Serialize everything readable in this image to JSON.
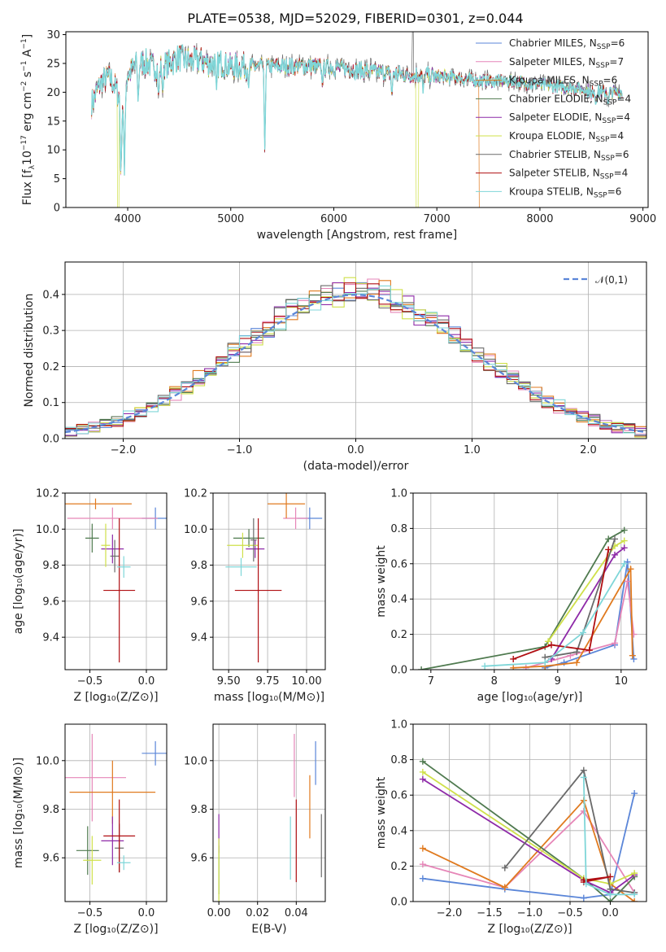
{
  "figure_title": "PLATE=0538, MJD=52029, FIBERID=0301, z=0.044",
  "colors": {
    "Chabrier MILES": "#5b86d8",
    "Salpeter MILES": "#e686b8",
    "Kroupa MILES": "#e07a1f",
    "Chabrier ELODIE": "#4f7a4f",
    "Salpeter ELODIE": "#8e2aa8",
    "Kroupa ELODIE": "#cfe04a",
    "Chabrier STELIB": "#6a6a6a",
    "Salpeter STELIB": "#b00f12",
    "Kroupa STELIB": "#7fd6d8"
  },
  "chart_data": [
    {
      "type": "line",
      "title": "PLATE=0538, MJD=52029, FIBERID=0301, z=0.044",
      "xlabel": "wavelength [Angstrom, rest frame]",
      "ylabel": "Flux [f",
      "ylabel_sub": "λ",
      "ylabel_mid": "10",
      "ylabel_sup1": "−17",
      "ylabel_tail": " erg cm",
      "ylabel_sup2": "−2",
      "ylabel_s": " s",
      "ylabel_sup3": "−1",
      "ylabel_a": " A",
      "ylabel_sup4": "−1",
      "ylabel_end": "]",
      "xlim": [
        3400,
        9050
      ],
      "ylim": [
        0,
        30.5
      ],
      "xticks": [
        4000,
        5000,
        6000,
        7000,
        8000,
        9000
      ],
      "yticks": [
        0,
        5,
        10,
        15,
        20,
        25,
        30
      ],
      "legend_position": "top-right",
      "legend": [
        {
          "name": "Chabrier MILES",
          "nssp": "6"
        },
        {
          "name": "Salpeter MILES",
          "nssp": "7"
        },
        {
          "name": "Kroupa MILES",
          "nssp": "6"
        },
        {
          "name": "Chabrier ELODIE",
          "nssp": "4"
        },
        {
          "name": "Salpeter ELODIE",
          "nssp": "4"
        },
        {
          "name": "Kroupa ELODIE",
          "nssp": "4"
        },
        {
          "name": "Chabrier STELIB",
          "nssp": "6"
        },
        {
          "name": "Salpeter STELIB",
          "nssp": "4"
        },
        {
          "name": "Kroupa STELIB",
          "nssp": "6"
        }
      ],
      "legend_prefix": "N",
      "legend_sub": "SSP",
      "continuum": [
        [
          3650,
          18
        ],
        [
          3700,
          20
        ],
        [
          3750,
          22
        ],
        [
          3800,
          22.5
        ],
        [
          3850,
          22
        ],
        [
          3900,
          20
        ],
        [
          3950,
          18
        ],
        [
          4000,
          23
        ],
        [
          4100,
          25
        ],
        [
          4200,
          25
        ],
        [
          4300,
          24
        ],
        [
          4400,
          25
        ],
        [
          4500,
          26
        ],
        [
          4600,
          25.5
        ],
        [
          4700,
          25.5
        ],
        [
          4800,
          25
        ],
        [
          4900,
          25
        ],
        [
          5000,
          24.5
        ],
        [
          5200,
          24.5
        ],
        [
          5400,
          24.5
        ],
        [
          5600,
          24.5
        ],
        [
          5800,
          24.5
        ],
        [
          6000,
          24.3
        ],
        [
          6200,
          24
        ],
        [
          6400,
          23.5
        ],
        [
          6600,
          23.2
        ],
        [
          6800,
          23
        ],
        [
          7000,
          22.8
        ],
        [
          7200,
          22.5
        ],
        [
          7400,
          22
        ],
        [
          7600,
          22
        ],
        [
          7800,
          21.7
        ],
        [
          8000,
          21.3
        ],
        [
          8200,
          21
        ],
        [
          8400,
          20.5
        ],
        [
          8600,
          20
        ],
        [
          8800,
          20
        ]
      ],
      "lines": [
        [
          3934,
          4
        ],
        [
          3968,
          6
        ],
        [
          4102,
          18
        ],
        [
          4300,
          19
        ],
        [
          4340,
          20
        ],
        [
          4861,
          20
        ],
        [
          5175,
          21
        ],
        [
          5330,
          10
        ],
        [
          5890,
          21
        ],
        [
          6563,
          19
        ],
        [
          6867,
          20
        ],
        [
          8498,
          19
        ],
        [
          8542,
          18
        ],
        [
          8662,
          18
        ]
      ],
      "dropouts": [
        {
          "series": "Kroupa ELODIE",
          "from": 6800,
          "to": 6820
        },
        {
          "series": "Kroupa MILES",
          "from": 7410,
          "to": 7430
        },
        {
          "series": "Kroupa ELODIE",
          "from": 3900,
          "to": 3915
        }
      ]
    },
    {
      "type": "bar",
      "xlabel": "(data-model)/error",
      "ylabel": "Normed distribution",
      "xlim": [
        -2.5,
        2.5
      ],
      "ylim": [
        0,
        0.49
      ],
      "xticks": [
        -2,
        -1,
        0,
        1,
        2
      ],
      "yticks": [
        0.0,
        0.1,
        0.2,
        0.3,
        0.4
      ],
      "bin_width": 0.1,
      "legend_position": "top-right",
      "legend": [
        "𝒩(0,1)"
      ],
      "normal_curve": {
        "mean": 0,
        "sigma": 1
      }
    },
    {
      "type": "scatter",
      "xlabel": "Z [log₁₀(Z/Z⊙)]",
      "ylabel": "age  [log₁₀(age/yr)]",
      "xlim": [
        -0.72,
        0.18
      ],
      "ylim": [
        9.22,
        10.2
      ],
      "xticks": [
        -0.5,
        0.0
      ],
      "yticks": [
        9.4,
        9.6,
        9.8,
        10.0,
        10.2
      ],
      "points": [
        {
          "series": "Chabrier MILES",
          "x": 0.08,
          "xerr": 0.12,
          "y": 10.06,
          "yerr": 0.06
        },
        {
          "series": "Salpeter MILES",
          "x": -0.3,
          "xerr": 0.4,
          "y": 10.06,
          "yerr": 0.06
        },
        {
          "series": "Kroupa MILES",
          "x": -0.45,
          "xerr": 0.32,
          "y": 10.14,
          "yerr": 0.03
        },
        {
          "series": "Chabrier ELODIE",
          "x": -0.48,
          "xerr": 0.06,
          "y": 9.95,
          "yerr": 0.08
        },
        {
          "series": "Salpeter ELODIE",
          "x": -0.3,
          "xerr": 0.1,
          "y": 9.89,
          "yerr": 0.08
        },
        {
          "series": "Kroupa ELODIE",
          "x": -0.36,
          "xerr": 0.04,
          "y": 9.91,
          "yerr": 0.12
        },
        {
          "series": "Chabrier STELIB",
          "x": -0.28,
          "xerr": 0.04,
          "y": 9.85,
          "yerr": 0.09
        },
        {
          "series": "Salpeter STELIB",
          "x": -0.24,
          "xerr": 0.14,
          "y": 9.66,
          "yerr": 0.4
        },
        {
          "series": "Kroupa STELIB",
          "x": -0.2,
          "xerr": 0.06,
          "y": 9.79,
          "yerr": 0.06
        }
      ]
    },
    {
      "type": "scatter",
      "xlabel": "mass [log₁₀(M/M⊙)]",
      "ylabel": "",
      "xlim": [
        9.4,
        10.12
      ],
      "ylim": [
        9.22,
        10.2
      ],
      "xticks": [
        9.5,
        9.75,
        10.0
      ],
      "yticks": [
        9.4,
        9.6,
        9.8,
        10.0,
        10.2
      ],
      "points": [
        {
          "series": "Chabrier MILES",
          "x": 10.02,
          "xerr": 0.08,
          "y": 10.06,
          "yerr": 0.06
        },
        {
          "series": "Salpeter MILES",
          "x": 9.93,
          "xerr": 0.08,
          "y": 10.06,
          "yerr": 0.06
        },
        {
          "series": "Kroupa MILES",
          "x": 9.87,
          "xerr": 0.12,
          "y": 10.14,
          "yerr": 0.08
        },
        {
          "series": "Chabrier ELODIE",
          "x": 9.63,
          "xerr": 0.1,
          "y": 9.95,
          "yerr": 0.05
        },
        {
          "series": "Salpeter ELODIE",
          "x": 9.67,
          "xerr": 0.06,
          "y": 9.89,
          "yerr": 0.05
        },
        {
          "series": "Kroupa ELODIE",
          "x": 9.59,
          "xerr": 0.1,
          "y": 9.91,
          "yerr": 0.07
        },
        {
          "series": "Chabrier STELIB",
          "x": 9.66,
          "xerr": 0.02,
          "y": 9.94,
          "yerr": 0.12
        },
        {
          "series": "Salpeter STELIB",
          "x": 9.69,
          "xerr": 0.15,
          "y": 9.66,
          "yerr": 0.4
        },
        {
          "series": "Kroupa STELIB",
          "x": 9.58,
          "xerr": 0.1,
          "y": 9.79,
          "yerr": 0.05
        }
      ]
    },
    {
      "type": "line",
      "xlabel": "age  [log₁₀(age/yr)]",
      "ylabel": "mass weight",
      "xlim": [
        6.72,
        10.4
      ],
      "ylim": [
        0,
        1.0
      ],
      "xticks": [
        7,
        8,
        9,
        10
      ],
      "yticks": [
        0.0,
        0.2,
        0.4,
        0.6,
        0.8,
        1.0
      ],
      "series": [
        {
          "name": "Chabrier MILES",
          "x": [
            8.8,
            9.1,
            9.9,
            10.1,
            10.2
          ],
          "y": [
            0.01,
            0.04,
            0.14,
            0.61,
            0.06
          ]
        },
        {
          "name": "Salpeter MILES",
          "x": [
            8.5,
            9.2,
            9.9,
            10.1,
            10.2
          ],
          "y": [
            0.01,
            0.08,
            0.15,
            0.5,
            0.2
          ]
        },
        {
          "name": "Kroupa MILES",
          "x": [
            8.3,
            8.8,
            9.3,
            10.15,
            10.18
          ],
          "y": [
            0.01,
            0.02,
            0.04,
            0.57,
            0.08
          ]
        },
        {
          "name": "Chabrier ELODIE",
          "x": [
            6.85,
            8.8,
            9.8,
            10.05
          ],
          "y": [
            0.0,
            0.13,
            0.74,
            0.79
          ]
        },
        {
          "name": "Salpeter ELODIE",
          "x": [
            8.9,
            9.9,
            10.05
          ],
          "y": [
            0.06,
            0.65,
            0.69
          ]
        },
        {
          "name": "Kroupa ELODIE",
          "x": [
            8.85,
            9.9,
            10.05
          ],
          "y": [
            0.16,
            0.7,
            0.73
          ]
        },
        {
          "name": "Chabrier STELIB",
          "x": [
            8.8,
            9.3,
            9.9
          ],
          "y": [
            0.07,
            0.1,
            0.74
          ]
        },
        {
          "name": "Salpeter STELIB",
          "x": [
            8.3,
            8.9,
            9.5,
            9.8
          ],
          "y": [
            0.06,
            0.14,
            0.11,
            0.68
          ]
        },
        {
          "name": "Kroupa STELIB",
          "x": [
            7.85,
            8.8,
            9.4,
            10.05
          ],
          "y": [
            0.02,
            0.04,
            0.21,
            0.6
          ]
        }
      ]
    },
    {
      "type": "scatter",
      "xlabel": "Z [log₁₀(Z/Z⊙)]",
      "ylabel": "mass [log₁₀(M/M⊙)]",
      "xlim": [
        -0.72,
        0.18
      ],
      "ylim": [
        9.42,
        10.15
      ],
      "xticks": [
        -0.5,
        0.0
      ],
      "yticks": [
        9.6,
        9.8,
        10.0
      ],
      "points": [
        {
          "series": "Chabrier MILES",
          "x": 0.08,
          "xerr": 0.12,
          "y": 10.03,
          "yerr": 0.05
        },
        {
          "series": "Salpeter MILES",
          "x": -0.48,
          "xerr": 0.3,
          "y": 9.93,
          "yerr": 0.18
        },
        {
          "series": "Kroupa MILES",
          "x": -0.3,
          "xerr": 0.38,
          "y": 9.87,
          "yerr": 0.13
        },
        {
          "series": "Chabrier ELODIE",
          "x": -0.52,
          "xerr": 0.1,
          "y": 9.63,
          "yerr": 0.1
        },
        {
          "series": "Salpeter ELODIE",
          "x": -0.3,
          "xerr": 0.1,
          "y": 9.67,
          "yerr": 0.1
        },
        {
          "series": "Kroupa ELODIE",
          "x": -0.48,
          "xerr": 0.08,
          "y": 9.59,
          "yerr": 0.1
        },
        {
          "series": "Chabrier STELIB",
          "x": -0.24,
          "xerr": 0.04,
          "y": 9.64,
          "yerr": 0.1
        },
        {
          "series": "Salpeter STELIB",
          "x": -0.24,
          "xerr": 0.14,
          "y": 9.69,
          "yerr": 0.15
        },
        {
          "series": "Kroupa STELIB",
          "x": -0.2,
          "xerr": 0.06,
          "y": 9.58,
          "yerr": 0.03
        }
      ]
    },
    {
      "type": "scatter",
      "xlabel": "E(B-V)",
      "ylabel": "",
      "xlim": [
        -0.003,
        0.055
      ],
      "ylim": [
        9.42,
        10.15
      ],
      "xticks": [
        0.0,
        0.02,
        0.04
      ],
      "yticks": [
        9.6,
        9.8,
        10.0
      ],
      "points": [
        {
          "series": "Chabrier MILES",
          "x": 0.05,
          "y": 9.99,
          "yerr": 0.09
        },
        {
          "series": "Salpeter MILES",
          "x": 0.039,
          "y": 9.98,
          "yerr": 0.13
        },
        {
          "series": "Kroupa MILES",
          "x": 0.047,
          "y": 9.81,
          "yerr": 0.13
        },
        {
          "series": "Chabrier ELODIE",
          "x": 0.0,
          "y": 9.55,
          "yerr": 0.1
        },
        {
          "series": "Salpeter ELODIE",
          "x": 0.0,
          "y": 9.7,
          "yerr": 0.08
        },
        {
          "series": "Kroupa ELODIE",
          "x": 0.0,
          "y": 9.55,
          "yerr": 0.13
        },
        {
          "series": "Chabrier STELIB",
          "x": 0.053,
          "y": 9.65,
          "yerr": 0.13
        },
        {
          "series": "Salpeter STELIB",
          "x": 0.04,
          "y": 9.67,
          "yerr": 0.17
        },
        {
          "series": "Kroupa STELIB",
          "x": 0.037,
          "y": 9.64,
          "yerr": 0.13
        }
      ]
    },
    {
      "type": "line",
      "xlabel": "Z [log₁₀(Z/Z⊙)]",
      "ylabel": "mass weight",
      "xlim": [
        -2.45,
        0.45
      ],
      "ylim": [
        0,
        1.0
      ],
      "xticks": [
        -2.0,
        -1.5,
        -1.0,
        -0.5,
        0.0
      ],
      "yticks": [
        0.0,
        0.2,
        0.4,
        0.6,
        0.8,
        1.0
      ],
      "series": [
        {
          "name": "Chabrier MILES",
          "x": [
            -2.33,
            -1.31,
            -0.33,
            0.0,
            0.3
          ],
          "y": [
            0.13,
            0.07,
            0.02,
            0.04,
            0.61
          ]
        },
        {
          "name": "Salpeter MILES",
          "x": [
            -2.33,
            -1.31,
            -0.33,
            0.3
          ],
          "y": [
            0.21,
            0.08,
            0.51,
            0.05
          ]
        },
        {
          "name": "Kroupa MILES",
          "x": [
            -2.33,
            -1.31,
            -0.33,
            0.0,
            0.3
          ],
          "y": [
            0.3,
            0.08,
            0.57,
            0.1,
            0.0
          ]
        },
        {
          "name": "Chabrier ELODIE",
          "x": [
            -2.33,
            -0.33,
            0.0,
            0.3
          ],
          "y": [
            0.79,
            0.13,
            0.0,
            0.14
          ]
        },
        {
          "name": "Salpeter ELODIE",
          "x": [
            -2.33,
            -0.33,
            0.0,
            0.3
          ],
          "y": [
            0.69,
            0.12,
            0.05,
            0.15
          ]
        },
        {
          "name": "Kroupa ELODIE",
          "x": [
            -2.33,
            -0.33,
            0.0,
            0.3
          ],
          "y": [
            0.73,
            0.13,
            0.1,
            0.16
          ]
        },
        {
          "name": "Chabrier STELIB",
          "x": [
            -1.31,
            -0.33,
            0.0,
            0.3
          ],
          "y": [
            0.19,
            0.74,
            0.07,
            0.05
          ]
        },
        {
          "name": "Salpeter STELIB",
          "x": [
            -0.33,
            0.0,
            -0.33
          ],
          "y": [
            0.12,
            0.14,
            0.11
          ]
        },
        {
          "name": "Kroupa STELIB",
          "x": [
            -0.33,
            -0.3,
            0.0,
            0.3
          ],
          "y": [
            0.7,
            0.1,
            0.04,
            0.04
          ]
        }
      ]
    }
  ]
}
